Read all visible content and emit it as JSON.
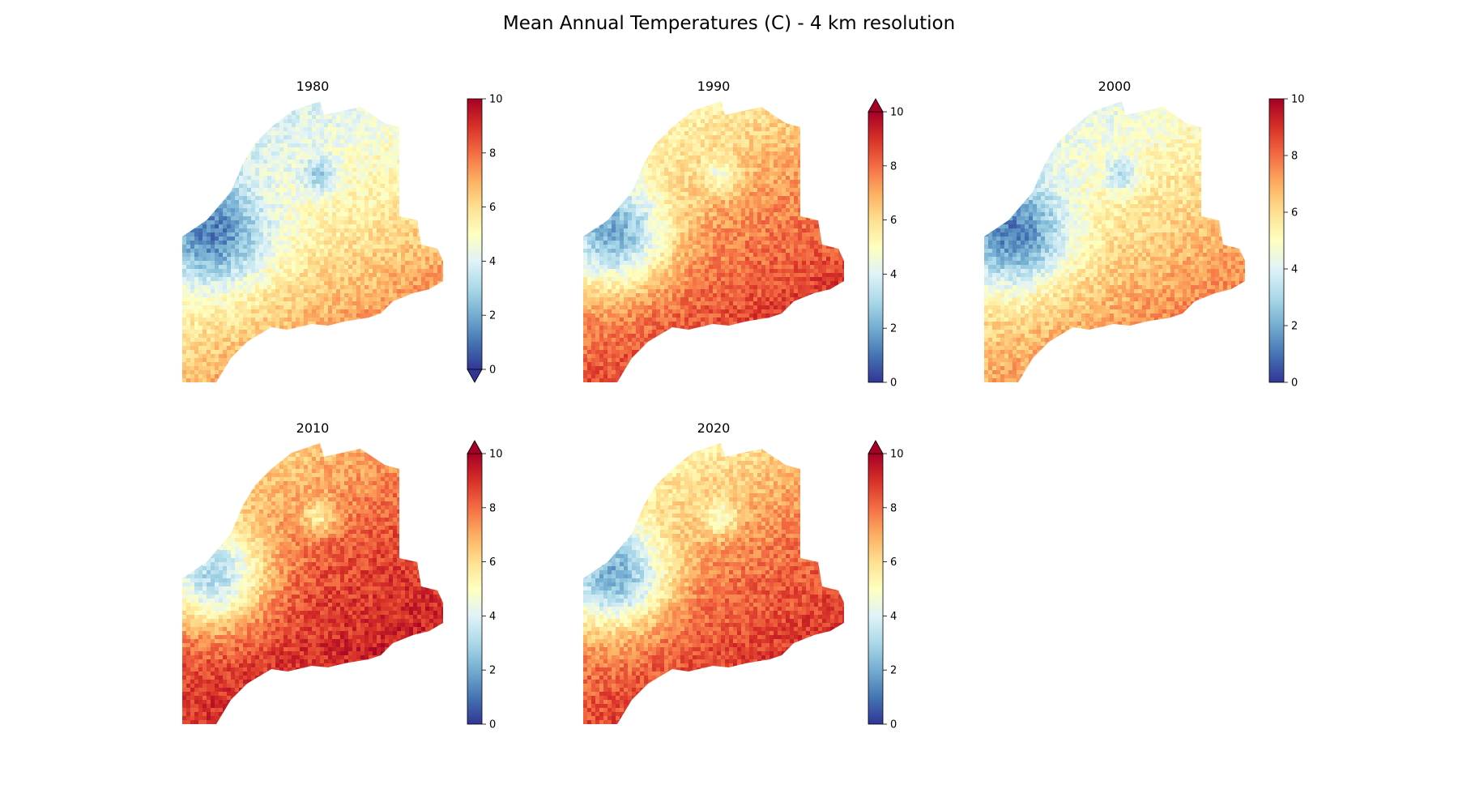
{
  "figure": {
    "title": "Mean Annual Temperatures (C) - 4 km resolution"
  },
  "colormap": {
    "name": "RdYlBu_r",
    "stops": [
      "#313695",
      "#4575b4",
      "#74add1",
      "#abd9e9",
      "#e0f3f8",
      "#ffffbf",
      "#fee090",
      "#fdae61",
      "#f46d43",
      "#d73027",
      "#a50026"
    ]
  },
  "panels": [
    {
      "year": "1980",
      "vmin": 0,
      "vmax": 10,
      "colorbar_ticks": [
        "0",
        "2",
        "4",
        "6",
        "8",
        "10"
      ],
      "colorbar_extend": "min",
      "temperature_field": {
        "south_coast_c": 9.0,
        "central_c": 5.5,
        "north_c": 3.0,
        "interior_cold_c": 1.5
      }
    },
    {
      "year": "1990",
      "vmin": 0,
      "vmax": 10,
      "colorbar_ticks": [
        "0",
        "2",
        "4",
        "6",
        "8",
        "10"
      ],
      "colorbar_extend": "max",
      "temperature_field": {
        "south_coast_c": 10.0,
        "central_c": 7.5,
        "north_c": 4.2,
        "interior_cold_c": 2.5
      }
    },
    {
      "year": "2000",
      "vmin": 0,
      "vmax": 10,
      "colorbar_ticks": [
        "0",
        "2",
        "4",
        "6",
        "8",
        "10"
      ],
      "colorbar_extend": "neither",
      "temperature_field": {
        "south_coast_c": 9.0,
        "central_c": 6.0,
        "north_c": 3.2,
        "interior_cold_c": 1.5
      }
    },
    {
      "year": "2010",
      "vmin": 0,
      "vmax": 10,
      "colorbar_ticks": [
        "0",
        "2",
        "4",
        "6",
        "8",
        "10"
      ],
      "colorbar_extend": "max",
      "temperature_field": {
        "south_coast_c": 10.0,
        "central_c": 8.5,
        "north_c": 5.3,
        "interior_cold_c": 3.5
      }
    },
    {
      "year": "2020",
      "vmin": 0,
      "vmax": 10,
      "colorbar_ticks": [
        "0",
        "2",
        "4",
        "6",
        "8",
        "10"
      ],
      "colorbar_extend": "max",
      "temperature_field": {
        "south_coast_c": 10.0,
        "central_c": 7.8,
        "north_c": 4.3,
        "interior_cold_c": 2.5
      }
    }
  ]
}
